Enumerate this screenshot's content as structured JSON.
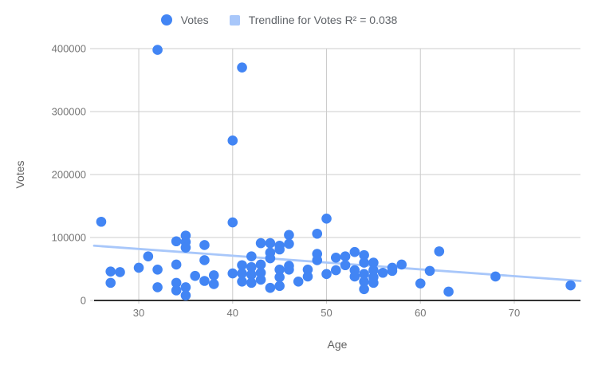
{
  "legend": {
    "series_label": "Votes",
    "trendline_label": "Trendline for Votes R² = 0.038"
  },
  "colors": {
    "series_color": "#4285F4",
    "trendline_color": "#A8C7FA",
    "gridline_color": "#CCCCCC",
    "axis_line_color": "#333333",
    "tick_label_color": "#757575",
    "axis_title_color": "#616161",
    "legend_text_color": "#5F6368",
    "background": "#FFFFFF"
  },
  "chart_data": {
    "type": "scatter",
    "title": "",
    "xlabel": "Age",
    "ylabel": "Votes",
    "x_ticks": [
      30,
      40,
      50,
      60,
      70
    ],
    "y_ticks": [
      0,
      100000,
      200000,
      300000,
      400000
    ],
    "xlim": [
      25.24,
      77.05
    ],
    "ylim": [
      0,
      400000
    ],
    "grid": true,
    "legend_position": "top-center",
    "point_radius": 6.3,
    "series": [
      {
        "name": "Votes",
        "points": [
          [
            26,
            125000
          ],
          [
            27,
            46000
          ],
          [
            27,
            28000
          ],
          [
            28,
            45000
          ],
          [
            30,
            52000
          ],
          [
            31,
            70000
          ],
          [
            32,
            398000
          ],
          [
            32,
            49000
          ],
          [
            32,
            21000
          ],
          [
            34,
            94000
          ],
          [
            34,
            57000
          ],
          [
            34,
            28000
          ],
          [
            34,
            16000
          ],
          [
            35,
            103000
          ],
          [
            35,
            93000
          ],
          [
            35,
            84000
          ],
          [
            35,
            21000
          ],
          [
            35,
            8000
          ],
          [
            36,
            39000
          ],
          [
            37,
            88000
          ],
          [
            37,
            64000
          ],
          [
            37,
            31000
          ],
          [
            38,
            40000
          ],
          [
            38,
            26000
          ],
          [
            40,
            254000
          ],
          [
            40,
            124000
          ],
          [
            40,
            43000
          ],
          [
            41,
            370000
          ],
          [
            41,
            56000
          ],
          [
            41,
            43000
          ],
          [
            41,
            30000
          ],
          [
            42,
            70000
          ],
          [
            42,
            53000
          ],
          [
            42,
            41000
          ],
          [
            42,
            28000
          ],
          [
            43,
            91000
          ],
          [
            43,
            57000
          ],
          [
            43,
            44000
          ],
          [
            43,
            33000
          ],
          [
            44,
            91000
          ],
          [
            44,
            76000
          ],
          [
            44,
            67000
          ],
          [
            44,
            20000
          ],
          [
            45,
            87000
          ],
          [
            45,
            81000
          ],
          [
            45,
            49000
          ],
          [
            45,
            37000
          ],
          [
            45,
            23000
          ],
          [
            46,
            104000
          ],
          [
            46,
            90000
          ],
          [
            46,
            55000
          ],
          [
            46,
            49000
          ],
          [
            47,
            30000
          ],
          [
            48,
            49000
          ],
          [
            48,
            38000
          ],
          [
            49,
            106000
          ],
          [
            49,
            74000
          ],
          [
            49,
            64000
          ],
          [
            50,
            130000
          ],
          [
            50,
            42000
          ],
          [
            51,
            68000
          ],
          [
            51,
            48000
          ],
          [
            52,
            70000
          ],
          [
            52,
            56000
          ],
          [
            53,
            77000
          ],
          [
            53,
            48000
          ],
          [
            53,
            38000
          ],
          [
            54,
            72000
          ],
          [
            54,
            60000
          ],
          [
            54,
            42000
          ],
          [
            54,
            30000
          ],
          [
            54,
            18000
          ],
          [
            55,
            60000
          ],
          [
            55,
            48000
          ],
          [
            55,
            37000
          ],
          [
            55,
            28000
          ],
          [
            56,
            44000
          ],
          [
            57,
            52000
          ],
          [
            57,
            47000
          ],
          [
            58,
            57000
          ],
          [
            60,
            27000
          ],
          [
            61,
            47000
          ],
          [
            62,
            78000
          ],
          [
            63,
            14000
          ],
          [
            68,
            38000
          ],
          [
            76,
            24000
          ]
        ]
      }
    ],
    "trendline": {
      "name": "Trendline for Votes",
      "r2": 0.038,
      "x_start": 25.24,
      "y_start": 87000,
      "x_end": 77.05,
      "y_end": 31000
    }
  }
}
